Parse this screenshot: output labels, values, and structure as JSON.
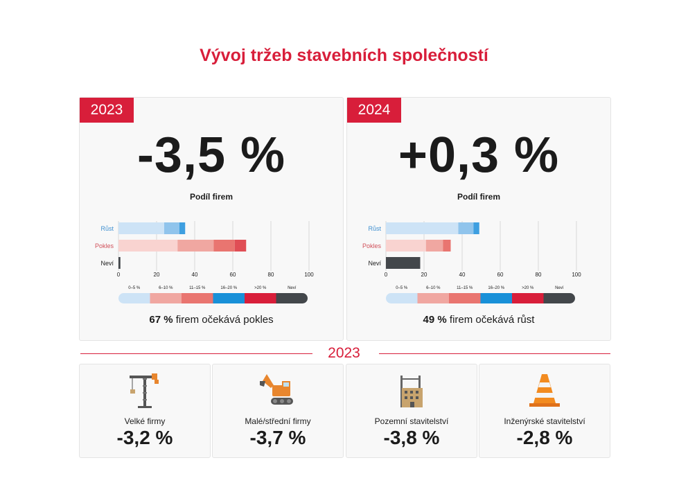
{
  "title": "Vývoj tržeb stavebních společností",
  "scale_labels": [
    "0–5 %",
    "6–10 %",
    "11–15 %",
    "16–20 %",
    ">20 %",
    "Neví"
  ],
  "colors": {
    "accent": "#d81e3a",
    "growth": [
      "#cde3f6",
      "#90c4ec",
      "#3e9fe0"
    ],
    "decline": [
      "#f9d3d0",
      "#f0a7a1",
      "#e97570",
      "#e04e55"
    ],
    "unknown": "#43474b",
    "scale": [
      "#cde3f6",
      "#f0a7a1",
      "#e97570",
      "#1890d8",
      "#d81e3a",
      "#43474b"
    ]
  },
  "cards": [
    {
      "year": "2023",
      "value": "-3,5 %",
      "share_label": "Podíl firem",
      "footer_pct": "67 %",
      "footer_text": " firem očekává pokles",
      "chart_data": {
        "type": "bar",
        "orientation": "horizontal",
        "stacked": true,
        "categories": [
          "Růst",
          "Pokles",
          "Neví"
        ],
        "series": [
          {
            "category": "Růst",
            "segments": [
              24,
              8,
              3
            ]
          },
          {
            "category": "Pokles",
            "segments": [
              31,
              19,
              11,
              6
            ]
          },
          {
            "category": "Neví",
            "segments": [
              1
            ]
          }
        ],
        "xlim": [
          0,
          100
        ],
        "xticks": [
          "0",
          "20",
          "40",
          "60",
          "80",
          "100"
        ],
        "grid": true
      }
    },
    {
      "year": "2024",
      "value": "+0,3 %",
      "share_label": "Podíl firem",
      "footer_pct": "49 %",
      "footer_text": " firem očekává růst",
      "chart_data": {
        "type": "bar",
        "orientation": "horizontal",
        "stacked": true,
        "categories": [
          "Růst",
          "Pokles",
          "Neví"
        ],
        "series": [
          {
            "category": "Růst",
            "segments": [
              38,
              8,
              3
            ]
          },
          {
            "category": "Pokles",
            "segments": [
              21,
              9,
              4
            ]
          },
          {
            "category": "Neví",
            "segments": [
              18
            ]
          }
        ],
        "xlim": [
          0,
          100
        ],
        "xticks": [
          "0",
          "20",
          "40",
          "60",
          "80",
          "100"
        ],
        "grid": true
      }
    }
  ],
  "section_year": "2023",
  "segments": [
    {
      "label": "Velké firmy",
      "value": "-3,2 %",
      "icon": "crane-icon"
    },
    {
      "label": "Malé/střední firmy",
      "value": "-3,7 %",
      "icon": "excavator-icon"
    },
    {
      "label": "Pozemní stavitelství",
      "value": "-3,8 %",
      "icon": "building-icon"
    },
    {
      "label": "Inženýrské stavitelství",
      "value": "-2,8 %",
      "icon": "traffic-cone-icon"
    }
  ]
}
